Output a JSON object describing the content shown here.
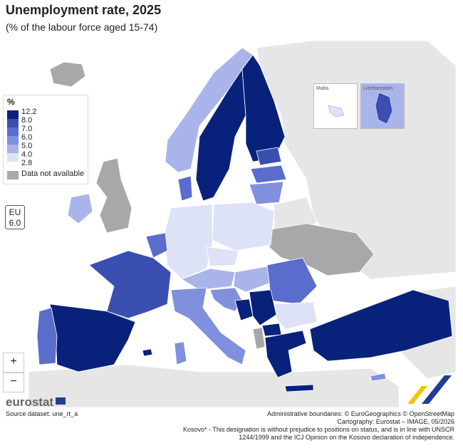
{
  "title": "Unemployment rate, 2025",
  "subtitle": "(% of the labour force aged 15-74)",
  "legend": {
    "header": "%",
    "classes": [
      {
        "label": "12.2",
        "color": "#08217a"
      },
      {
        "label": "8.0",
        "color": "#3a4fb0"
      },
      {
        "label": "7.0",
        "color": "#5a6ccc"
      },
      {
        "label": "6.0",
        "color": "#8090de"
      },
      {
        "label": "5.0",
        "color": "#a9b4ea"
      },
      {
        "label": "4.0",
        "color": "#dde2f7"
      },
      {
        "label": "2.8",
        "color": ""
      }
    ],
    "na_label": "Data not available",
    "na_color": "#a8a8a8"
  },
  "eu": {
    "label": "EU",
    "value": "6.0"
  },
  "insets": {
    "malta": "Malta",
    "liechtenstein": "Liechtenstein"
  },
  "zoom": {
    "in": "+",
    "out": "−"
  },
  "branding": "eurostat",
  "source": "Source dataset: une_rt_a",
  "credits": {
    "line1": "Administrative boundaries: © EuroGeographics © OpenStreetMap",
    "line2": "Cartography: Eurostat – IMAGE, 05/2026",
    "note": "Kosovo* - This designation is without prejudice to positions on status, and is in line with UNSCR 1244/1999 and the ICJ Opinion on the Kosovo declaration of independence."
  },
  "colors": {
    "sea": "#ffffff",
    "non_eu": "#e6e6e6",
    "c1": "#08217a",
    "c2": "#3a4fb0",
    "c3": "#5a6ccc",
    "c4": "#8090de",
    "c5": "#a9b4ea",
    "c6": "#dde2f7",
    "na": "#a8a8a8"
  },
  "countries": [
    {
      "name": "Spain",
      "cls": "c1"
    },
    {
      "name": "Portugal",
      "cls": "c3"
    },
    {
      "name": "France",
      "cls": "c2"
    },
    {
      "name": "Italy",
      "cls": "c4"
    },
    {
      "name": "Germany",
      "cls": "c6"
    },
    {
      "name": "Poland",
      "cls": "c6"
    },
    {
      "name": "Czechia",
      "cls": "c6"
    },
    {
      "name": "Finland",
      "cls": "c1"
    },
    {
      "name": "Sweden",
      "cls": "c1"
    },
    {
      "name": "Norway",
      "cls": "c5"
    },
    {
      "name": "Denmark",
      "cls": "c3"
    },
    {
      "name": "Estonia",
      "cls": "c2"
    },
    {
      "name": "Latvia",
      "cls": "c3"
    },
    {
      "name": "Lithuania",
      "cls": "c4"
    },
    {
      "name": "Ireland",
      "cls": "c5"
    },
    {
      "name": "Romania",
      "cls": "c3"
    },
    {
      "name": "Bulgaria",
      "cls": "c6"
    },
    {
      "name": "Greece",
      "cls": "c1"
    },
    {
      "name": "Turkey",
      "cls": "c1"
    },
    {
      "name": "Hungary",
      "cls": "c5"
    },
    {
      "name": "Austria",
      "cls": "c5"
    },
    {
      "name": "Croatia",
      "cls": "c4"
    },
    {
      "name": "Serbia",
      "cls": "c1"
    },
    {
      "name": "Bosnia",
      "cls": "c1"
    },
    {
      "name": "North Macedonia",
      "cls": "c1"
    },
    {
      "name": "Albania",
      "cls": "na"
    },
    {
      "name": "United Kingdom",
      "cls": "na"
    },
    {
      "name": "Iceland",
      "cls": "na"
    },
    {
      "name": "Ukraine",
      "cls": "na"
    },
    {
      "name": "Belarus",
      "cls": "non_eu"
    }
  ]
}
